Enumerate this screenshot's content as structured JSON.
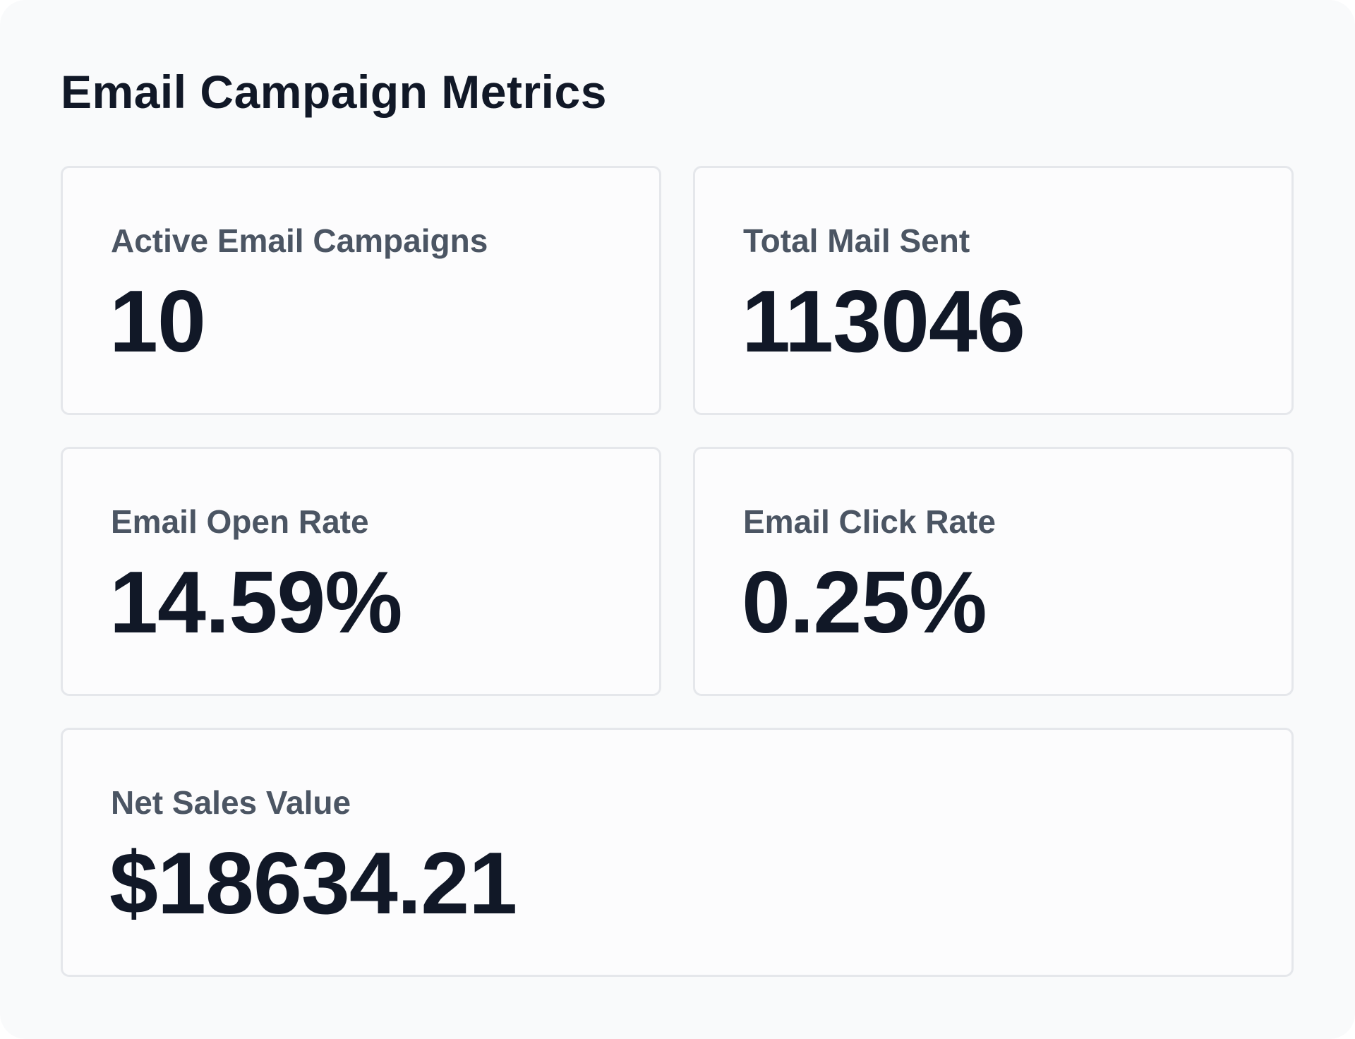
{
  "header": {
    "title": "Email Campaign Metrics"
  },
  "metrics": [
    {
      "label": "Active Email Campaigns",
      "value": "10"
    },
    {
      "label": "Total Mail Sent",
      "value": "113046"
    },
    {
      "label": "Email Open Rate",
      "value": "14.59%"
    },
    {
      "label": "Email Click Rate",
      "value": "0.25%"
    },
    {
      "label": "Net Sales Value",
      "value": "$18634.21"
    }
  ]
}
